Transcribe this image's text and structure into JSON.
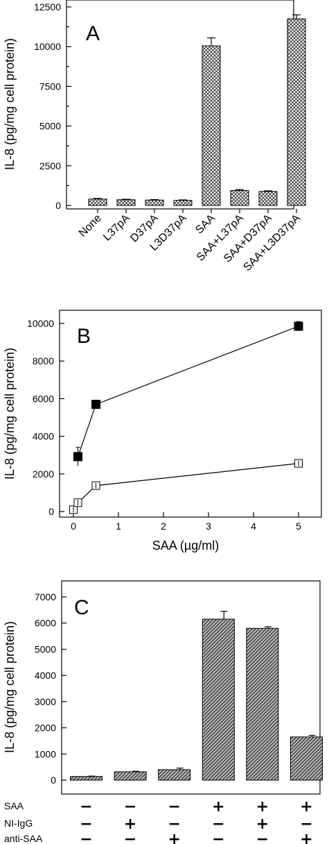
{
  "chart_data": [
    {
      "panel": "A",
      "type": "bar",
      "ylabel": "IL-8 (pg/mg cell protein)",
      "ylim": [
        0,
        12500
      ],
      "yticks": [
        0,
        2500,
        5000,
        7500,
        10000,
        12500
      ],
      "categories": [
        "None",
        "L37pA",
        "D37pA",
        "L3D37pA",
        "SAA",
        "SAA+L37pA",
        "SAA+D37pA",
        "SAA+L3D37pA"
      ],
      "values": [
        400,
        360,
        340,
        320,
        10050,
        940,
        880,
        11750
      ],
      "errors": [
        40,
        30,
        30,
        30,
        500,
        60,
        40,
        250
      ],
      "pattern": "crosshatch"
    },
    {
      "panel": "B",
      "type": "scatter",
      "xlabel": "SAA (µg/ml)",
      "ylabel": "IL-8 (pg/mg cell protein)",
      "xlim": [
        -0.15,
        5.3
      ],
      "ylim": [
        -100,
        11000
      ],
      "xticks": [
        0,
        1,
        2,
        3,
        4,
        5
      ],
      "yticks": [
        0,
        2000,
        4000,
        6000,
        8000,
        10000
      ],
      "series": [
        {
          "marker": "filled-square",
          "x": [
            0.1,
            0.5,
            5
          ],
          "y": [
            2920,
            5700,
            9850
          ],
          "errors": [
            500,
            100,
            250
          ]
        },
        {
          "marker": "open-square",
          "x": [
            0,
            0.1,
            0.5,
            5
          ],
          "y": [
            100,
            470,
            1380,
            2560
          ],
          "errors": [
            80,
            150,
            150,
            150
          ]
        }
      ]
    },
    {
      "panel": "C",
      "type": "bar",
      "ylabel": "IL-8 (pg/mg cell protein)",
      "ylim": [
        -250,
        7000
      ],
      "yticks": [
        0,
        1000,
        2000,
        3000,
        4000,
        5000,
        6000,
        7000
      ],
      "values": [
        140,
        320,
        400,
        6150,
        5800,
        1650
      ],
      "errors": [
        15,
        20,
        60,
        300,
        60,
        60
      ],
      "pattern": "diagonal",
      "conditions": [
        {
          "label": "SAA",
          "signs": [
            "−",
            "−",
            "−",
            "+",
            "+",
            "+"
          ]
        },
        {
          "label": "NI-IgG",
          "signs": [
            "−",
            "+",
            "−",
            "−",
            "+",
            "−"
          ]
        },
        {
          "label": "anti-SAA",
          "signs": [
            "−",
            "−",
            "+",
            "−",
            "−",
            "+"
          ]
        }
      ]
    }
  ]
}
